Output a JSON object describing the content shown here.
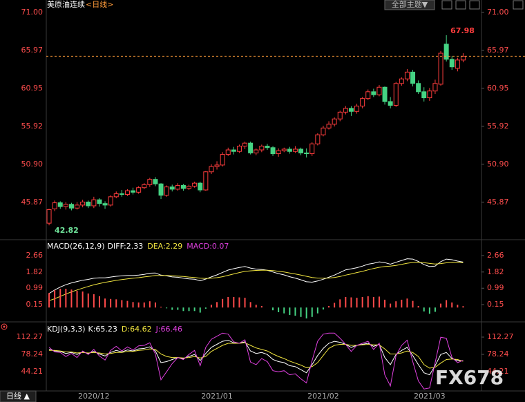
{
  "toolbar": {
    "theme_button": "全部主题▼"
  },
  "period_tab": "日线 ▲",
  "watermark": "FX678",
  "chart_data": [
    {
      "type": "candlestick",
      "title": "美原油连续",
      "subtitle": "<日线>",
      "categories": [
        null,
        null,
        null,
        null,
        null,
        null,
        null,
        null,
        "2020/12",
        null,
        null,
        null,
        null,
        null,
        null,
        null,
        null,
        null,
        null,
        null,
        null,
        null,
        null,
        null,
        null,
        null,
        null,
        null,
        null,
        null,
        "2021/01",
        null,
        null,
        null,
        null,
        null,
        null,
        null,
        null,
        null,
        null,
        null,
        null,
        null,
        null,
        null,
        null,
        null,
        null,
        "2021/02",
        null,
        null,
        null,
        null,
        null,
        null,
        null,
        null,
        null,
        null,
        null,
        null,
        null,
        null,
        null,
        null,
        null,
        null,
        "2021/03",
        null,
        null,
        null,
        null,
        null,
        null
      ],
      "open": [
        43.1,
        45.0,
        45.8,
        45.3,
        45.6,
        45.1,
        45.5,
        45.9,
        45.4,
        46.2,
        45.7,
        45.5,
        46.6,
        47.0,
        46.9,
        47.4,
        47.2,
        47.8,
        48.2,
        48.9,
        48.3,
        46.8,
        47.9,
        47.6,
        48.1,
        47.7,
        48.0,
        48.4,
        47.5,
        49.9,
        50.6,
        50.8,
        52.2,
        52.8,
        52.6,
        53.3,
        53.7,
        52.4,
        52.8,
        53.3,
        53.1,
        52.3,
        52.7,
        52.9,
        52.6,
        52.9,
        52.4,
        52.3,
        53.6,
        54.8,
        55.7,
        56.2,
        56.9,
        57.8,
        58.3,
        57.9,
        58.6,
        59.6,
        60.5,
        60.1,
        61.1,
        59.2,
        58.7,
        61.6,
        62.2,
        63.1,
        61.6,
        60.5,
        59.7,
        60.6,
        61.5,
        66.8,
        64.8,
        63.6,
        64.7
      ],
      "high": [
        45.0,
        46.1,
        46.0,
        45.9,
        45.8,
        45.9,
        46.2,
        46.1,
        46.6,
        46.4,
        46.0,
        46.8,
        47.3,
        47.5,
        47.6,
        47.8,
        48.0,
        48.4,
        49.1,
        49.2,
        48.4,
        48.1,
        48.2,
        48.4,
        48.3,
        48.2,
        48.6,
        48.6,
        50.0,
        50.9,
        51.3,
        52.5,
        53.1,
        53.2,
        53.5,
        53.9,
        53.9,
        53.0,
        53.5,
        53.6,
        53.3,
        53.0,
        53.1,
        53.2,
        53.3,
        53.1,
        53.0,
        53.8,
        55.0,
        56.0,
        56.6,
        57.1,
        58.0,
        58.6,
        58.6,
        58.9,
        59.8,
        60.8,
        60.9,
        61.4,
        61.2,
        59.8,
        61.8,
        62.4,
        63.5,
        63.4,
        62.0,
        61.1,
        61.0,
        62.1,
        65.9,
        67.98,
        65.2,
        65.0,
        65.6
      ],
      "low": [
        42.82,
        44.7,
        45.0,
        44.9,
        44.8,
        44.9,
        45.2,
        45.1,
        45.1,
        45.3,
        45.0,
        45.3,
        46.4,
        46.6,
        46.7,
        46.9,
        47.0,
        47.6,
        47.9,
        48.0,
        46.3,
        46.6,
        47.3,
        47.4,
        47.4,
        47.5,
        47.8,
        47.2,
        47.4,
        49.6,
        50.2,
        50.6,
        52.0,
        52.2,
        52.4,
        52.9,
        52.2,
        52.1,
        52.5,
        52.8,
        52.0,
        51.9,
        52.5,
        52.3,
        52.4,
        52.1,
        51.8,
        52.0,
        53.4,
        54.6,
        55.5,
        55.9,
        56.6,
        57.5,
        57.3,
        57.6,
        58.3,
        59.4,
        59.8,
        59.9,
        58.8,
        58.3,
        58.5,
        61.3,
        61.9,
        61.2,
        60.2,
        59.2,
        59.3,
        60.2,
        61.3,
        64.5,
        63.4,
        63.2,
        64.4
      ],
      "close": [
        44.9,
        45.8,
        45.3,
        45.6,
        45.1,
        45.5,
        45.9,
        45.4,
        46.2,
        45.7,
        45.5,
        46.6,
        47.0,
        46.9,
        47.4,
        47.2,
        47.8,
        48.2,
        48.9,
        48.3,
        46.8,
        47.9,
        47.6,
        48.1,
        47.7,
        48.0,
        48.4,
        47.5,
        49.9,
        50.6,
        50.8,
        52.2,
        52.8,
        52.6,
        53.3,
        53.7,
        52.4,
        52.8,
        53.3,
        53.1,
        52.3,
        52.7,
        52.9,
        52.6,
        52.9,
        52.4,
        52.3,
        53.6,
        54.8,
        55.7,
        56.2,
        56.9,
        57.8,
        58.3,
        57.9,
        58.6,
        59.6,
        60.5,
        60.1,
        61.1,
        59.2,
        58.7,
        61.6,
        62.2,
        63.1,
        61.6,
        60.5,
        59.7,
        60.6,
        61.6,
        65.6,
        64.8,
        63.8,
        64.7,
        65.2
      ],
      "ylim": [
        41.1,
        71.73
      ],
      "yticks": [
        {
          "value": 71,
          "label": "71.00"
        },
        65.97,
        60.95,
        55.92,
        {
          "value": 50.9,
          "label": "50.90"
        },
        45.87
      ],
      "up_color": "#ff3d3d",
      "down_color": "#45d383",
      "last_price_color": "#ff9c3a"
    },
    {
      "type": "macd",
      "title": "MACD(26,12,9)",
      "series": [
        {
          "name": "DIFF:2.33",
          "style": "line",
          "color": "#ffffff",
          "values": [
            0.72,
            0.9,
            1.05,
            1.17,
            1.26,
            1.33,
            1.4,
            1.44,
            1.5,
            1.52,
            1.52,
            1.56,
            1.6,
            1.62,
            1.64,
            1.64,
            1.66,
            1.7,
            1.76,
            1.77,
            1.66,
            1.62,
            1.57,
            1.55,
            1.5,
            1.47,
            1.45,
            1.37,
            1.46,
            1.57,
            1.67,
            1.8,
            1.92,
            1.99,
            2.05,
            2.1,
            2.02,
            1.97,
            1.95,
            1.91,
            1.82,
            1.74,
            1.67,
            1.58,
            1.51,
            1.42,
            1.32,
            1.3,
            1.36,
            1.45,
            1.55,
            1.66,
            1.8,
            1.93,
            1.98,
            2.04,
            2.12,
            2.22,
            2.27,
            2.34,
            2.3,
            2.22,
            2.32,
            2.41,
            2.5,
            2.48,
            2.36,
            2.2,
            2.1,
            2.12,
            2.35,
            2.48,
            2.45,
            2.38,
            2.33
          ]
        },
        {
          "name": "DEA:2.29",
          "style": "line",
          "color": "#f2e640",
          "values": [
            0.35,
            0.45,
            0.57,
            0.69,
            0.8,
            0.9,
            0.99,
            1.08,
            1.16,
            1.23,
            1.29,
            1.34,
            1.39,
            1.43,
            1.47,
            1.5,
            1.53,
            1.57,
            1.6,
            1.64,
            1.64,
            1.64,
            1.63,
            1.61,
            1.59,
            1.56,
            1.54,
            1.5,
            1.49,
            1.5,
            1.53,
            1.58,
            1.65,
            1.72,
            1.79,
            1.85,
            1.88,
            1.9,
            1.91,
            1.91,
            1.89,
            1.86,
            1.82,
            1.77,
            1.72,
            1.66,
            1.6,
            1.54,
            1.51,
            1.5,
            1.51,
            1.54,
            1.59,
            1.66,
            1.72,
            1.79,
            1.85,
            1.93,
            2.0,
            2.06,
            2.1,
            2.12,
            2.16,
            2.21,
            2.27,
            2.31,
            2.32,
            2.3,
            2.26,
            2.23,
            2.25,
            2.29,
            2.32,
            2.31,
            2.29
          ]
        },
        {
          "name": "MACD:0.07",
          "style": "bar",
          "color": "#e040e0",
          "values": [
            0.74,
            0.9,
            0.96,
            0.96,
            0.92,
            0.86,
            0.82,
            0.72,
            0.68,
            0.58,
            0.46,
            0.44,
            0.42,
            0.38,
            0.34,
            0.28,
            0.26,
            0.26,
            0.32,
            0.26,
            0.04,
            -0.04,
            -0.12,
            -0.12,
            -0.18,
            -0.18,
            -0.18,
            -0.26,
            -0.06,
            0.14,
            0.28,
            0.44,
            0.54,
            0.54,
            0.52,
            0.5,
            0.28,
            0.14,
            0.08,
            0,
            -0.14,
            -0.24,
            -0.3,
            -0.38,
            -0.42,
            -0.48,
            -0.56,
            -0.48,
            -0.3,
            -0.1,
            0.08,
            0.24,
            0.42,
            0.54,
            0.52,
            0.5,
            0.54,
            0.58,
            0.54,
            0.56,
            0.4,
            0.2,
            0.32,
            0.4,
            0.46,
            0.34,
            0.08,
            -0.2,
            -0.32,
            -0.22,
            0.2,
            0.38,
            0.26,
            0.14,
            0.07
          ]
        }
      ],
      "ylim": [
        -0.7,
        3.37
      ],
      "yticks": [
        2.66,
        1.82,
        0.99,
        0.15
      ],
      "up_color": "#ff4a4a",
      "down_color": "#45d383"
    },
    {
      "type": "line",
      "title": "KDJ(9,3,3)",
      "series": [
        {
          "name": "K:65.23",
          "color": "#ffffff",
          "values": [
            88,
            85,
            84,
            80,
            82,
            78,
            83,
            80,
            84,
            79,
            75,
            82,
            86,
            83,
            87,
            85,
            89,
            90,
            93,
            85,
            62,
            64,
            68,
            72,
            70,
            74,
            78,
            66,
            80,
            92,
            98,
            104,
            106,
            101,
            100,
            103,
            85,
            80,
            82,
            78,
            68,
            64,
            62,
            56,
            54,
            48,
            42,
            58,
            76,
            90,
            100,
            104,
            102,
            98,
            92,
            96,
            98,
            100,
            94,
            98,
            72,
            58,
            78,
            86,
            92,
            76,
            58,
            42,
            38,
            56,
            78,
            82,
            70,
            66,
            65.23
          ]
        },
        {
          "name": "D:64.62",
          "color": "#f2e640",
          "values": [
            86,
            86,
            85,
            83,
            83,
            81,
            82,
            81,
            82,
            81,
            79,
            80,
            82,
            82,
            84,
            84,
            86,
            87,
            89,
            88,
            79,
            74,
            72,
            72,
            71,
            72,
            74,
            71,
            74,
            84,
            90,
            96,
            100,
            100,
            100,
            101,
            96,
            91,
            88,
            85,
            79,
            74,
            70,
            65,
            61,
            57,
            52,
            54,
            62,
            76,
            90,
            96,
            98,
            98,
            96,
            96,
            97,
            98,
            97,
            97,
            89,
            79,
            79,
            81,
            85,
            82,
            74,
            58,
            51,
            53,
            61,
            68,
            69,
            68,
            64.62
          ]
        },
        {
          "name": "J:66.46",
          "color": "#e040e0",
          "values": [
            92,
            83,
            82,
            74,
            80,
            72,
            85,
            78,
            88,
            75,
            67,
            86,
            94,
            85,
            93,
            87,
            95,
            96,
            101,
            79,
            28,
            44,
            60,
            72,
            68,
            78,
            86,
            56,
            92,
            108,
            114,
            120,
            118,
            103,
            100,
            107,
            63,
            58,
            70,
            64,
            46,
            44,
            46,
            38,
            40,
            30,
            22,
            66,
            104,
            118,
            120,
            120,
            110,
            98,
            84,
            96,
            100,
            104,
            88,
            100,
            38,
            16,
            76,
            96,
            106,
            64,
            26,
            10,
            12,
            62,
            112,
            110,
            72,
            62,
            66.46
          ]
        }
      ],
      "ylim": [
        7.5,
        136.8
      ],
      "yticks": [
        112.27,
        78.24,
        44.21
      ]
    }
  ]
}
